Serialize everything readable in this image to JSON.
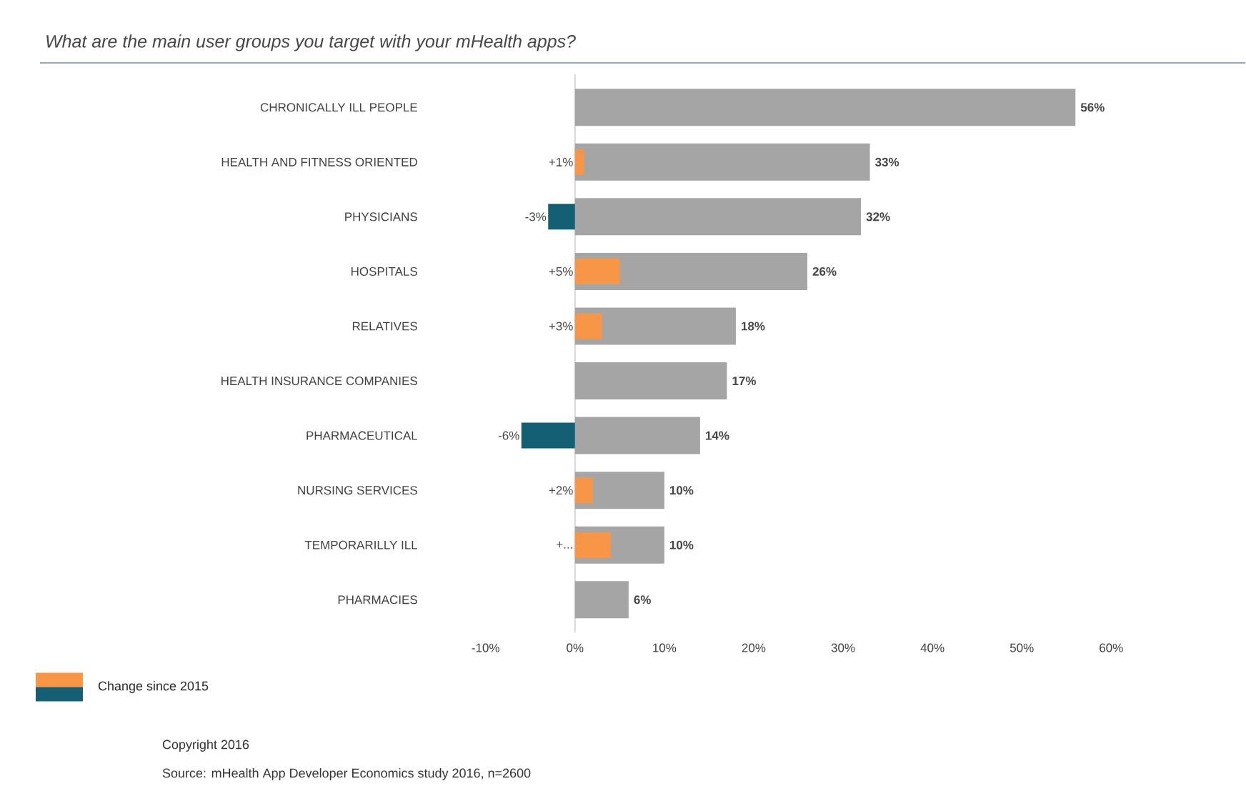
{
  "chart_data": {
    "type": "bar",
    "orientation": "horizontal",
    "title": "What are the main user groups you target with your mHealth apps?",
    "categories": [
      "CHRONICALLY ILL PEOPLE",
      "HEALTH AND FITNESS ORIENTED",
      "PHYSICIANS",
      "HOSPITALS",
      "RELATIVES",
      "HEALTH INSURANCE COMPANIES",
      "PHARMACEUTICAL",
      "NURSING SERVICES",
      "TEMPORARILLY ILL",
      "PHARMACIES"
    ],
    "xlim": [
      -10,
      60
    ],
    "xticks": [
      {
        "value": -10,
        "label": "-10%"
      },
      {
        "value": 0,
        "label": "0%"
      },
      {
        "value": 10,
        "label": "10%"
      },
      {
        "value": 20,
        "label": "20%"
      },
      {
        "value": 30,
        "label": "30%"
      },
      {
        "value": 40,
        "label": "40%"
      },
      {
        "value": 50,
        "label": "50%"
      },
      {
        "value": 60,
        "label": "60%"
      }
    ],
    "series": [
      {
        "color": "#a5a5a5",
        "values": [
          56,
          33,
          32,
          26,
          18,
          17,
          14,
          10,
          10,
          6
        ],
        "value_labels": [
          "56%",
          "33%",
          "32%",
          "26%",
          "18%",
          "17%",
          "14%",
          "10%",
          "10%",
          "6%"
        ]
      },
      {
        "name": "Change since 2015",
        "values": [
          null,
          1,
          -3,
          5,
          3,
          null,
          -6,
          2,
          4,
          null
        ],
        "colors": [
          null,
          "#f79646",
          "#145f74",
          "#f79646",
          "#f79646",
          null,
          "#145f74",
          "#f79646",
          "#f79646",
          null
        ],
        "value_labels": [
          null,
          "+1%",
          "-3%",
          "+5%",
          "+3%",
          null,
          "-6%",
          "+2%",
          "+...",
          null
        ]
      }
    ],
    "legend": "bottom left",
    "annotations": [
      "Copyright 2016",
      "Source: mHealth App Developer Economics study 2016, n=2600"
    ]
  }
}
